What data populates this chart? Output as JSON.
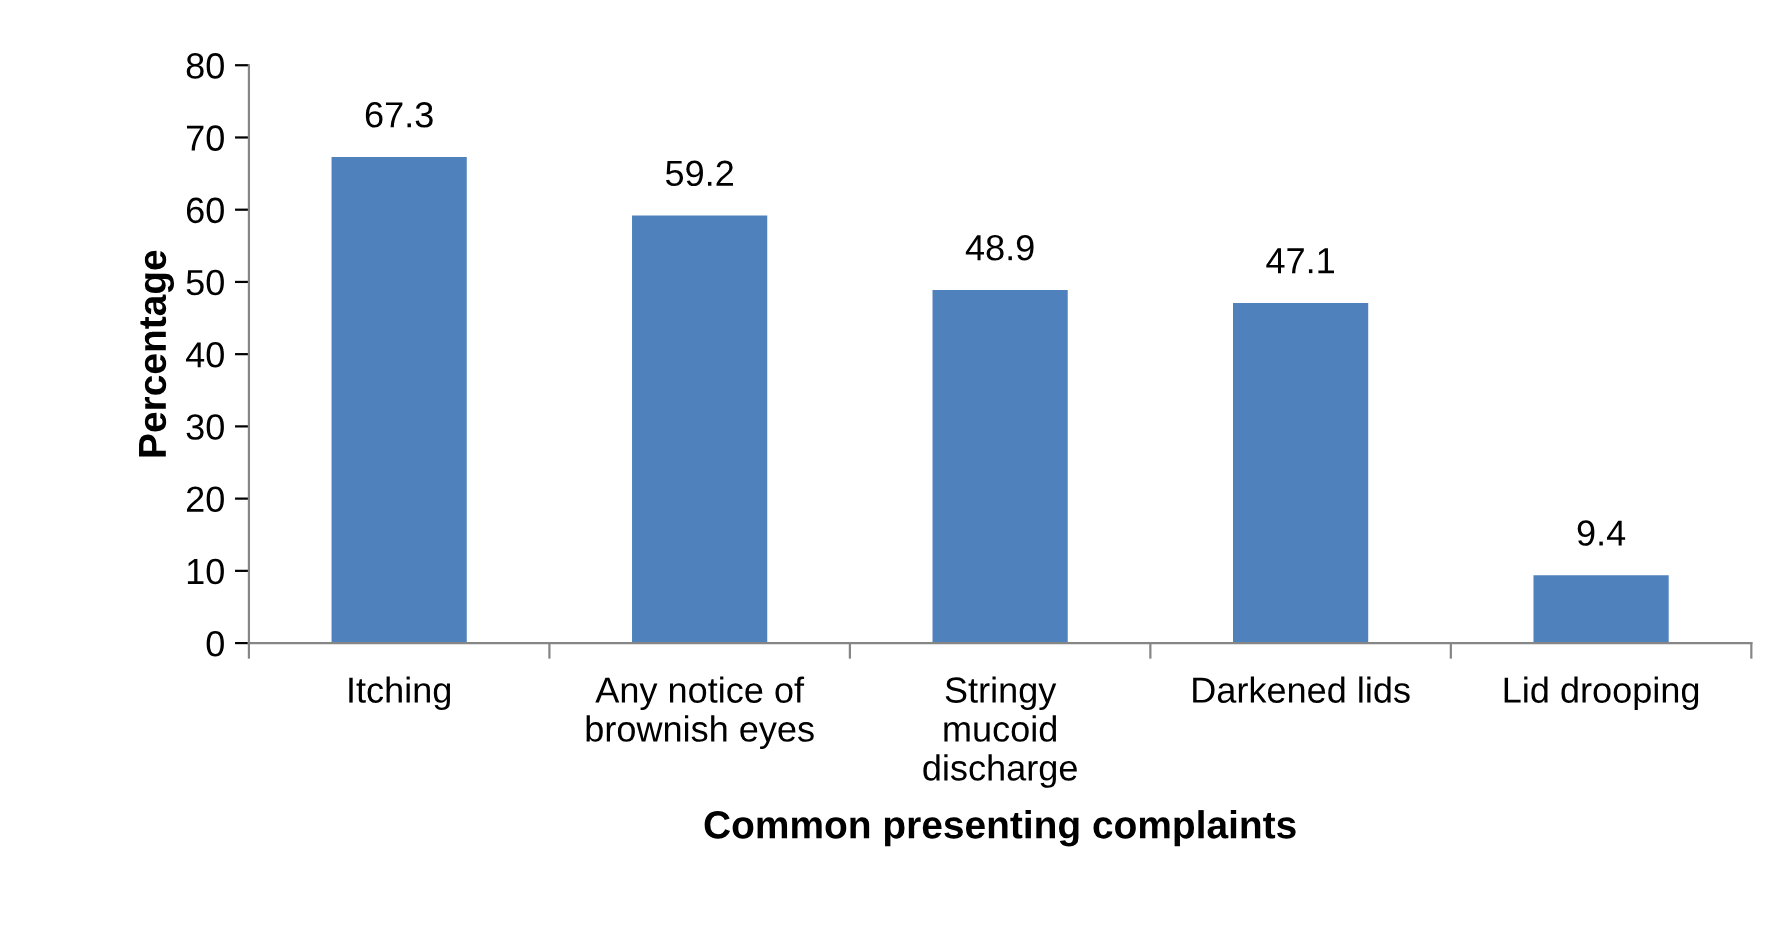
{
  "chart_data": {
    "type": "bar",
    "xlabel": "Common presenting complaints",
    "ylabel": "Percentage",
    "categories": [
      "Itching",
      "Any notice of\nbrownish eyes",
      "Stringy\nmucoid\ndischarge",
      "Darkened lids",
      "Lid drooping"
    ],
    "values": [
      67.3,
      59.2,
      48.9,
      47.1,
      9.4
    ],
    "color": "#4f81bd",
    "ylim": [
      0,
      80
    ],
    "yticks": [
      0,
      10,
      20,
      30,
      40,
      50,
      60,
      70,
      80
    ],
    "data_labels": true,
    "grid": false,
    "legend": false
  }
}
